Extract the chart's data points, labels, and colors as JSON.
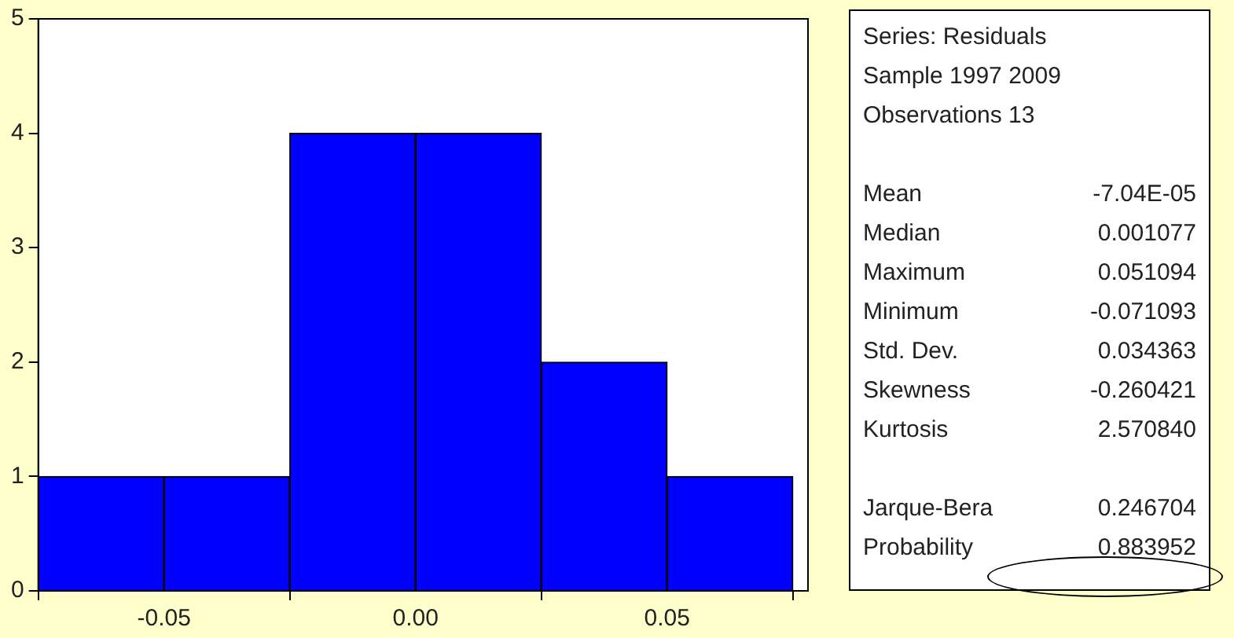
{
  "chart_data": {
    "type": "histogram",
    "bins": [
      -0.075,
      -0.05,
      -0.025,
      0,
      0.025,
      0.05,
      0.075
    ],
    "values": [
      1,
      1,
      4,
      4,
      2,
      1
    ],
    "color": "#0000ff",
    "xlim": [
      -0.075,
      0.078
    ],
    "xticks": [
      {
        "value": -0.05,
        "label": "-0.05"
      },
      {
        "value": 0,
        "label": "0.00"
      },
      {
        "value": 0.05,
        "label": "0.05"
      }
    ],
    "ylim": [
      0,
      5
    ],
    "yticks": [
      0,
      1,
      2,
      3,
      4,
      5
    ],
    "annotations": [
      "Series: Residuals",
      "Sample 1997 2009",
      "Observations 13",
      "Mean",
      "-7.04E-05",
      "Median",
      "0.001077",
      "Maximum",
      "0.051094",
      "Minimum",
      "-0.071093",
      "Std. Dev.",
      "0.034363",
      "Skewness",
      "-0.260421",
      "Kurtosis",
      "2.570840",
      "Jarque-Bera",
      "0.246704",
      "Probability",
      "0.883952"
    ]
  }
}
